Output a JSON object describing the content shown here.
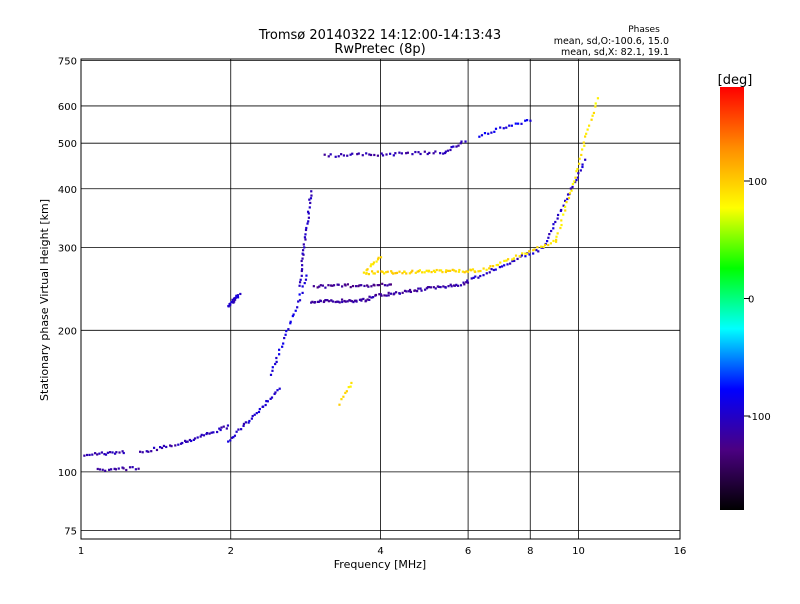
{
  "chart_data": {
    "type": "scatter",
    "title": "Tromsø 20140322 14:12:00-14:13:43",
    "subtitle": "RwPretec (8p)",
    "xlabel": "Frequency [MHz]",
    "ylabel": "Stationary phase Virtual Height [km]",
    "x_scale": "log",
    "y_scale": "log",
    "xlim": [
      1,
      16
    ],
    "ylim": [
      72,
      755
    ],
    "x_ticks": [
      1,
      2,
      4,
      6,
      8,
      10,
      16
    ],
    "x_tick_labels": [
      "1",
      "2",
      "4",
      "6",
      "8",
      "10",
      "16"
    ],
    "y_ticks": [
      75,
      100,
      200,
      300,
      400,
      500,
      600,
      750
    ],
    "y_tick_labels": [
      "75",
      "100",
      "200",
      "300",
      "400",
      "500",
      "600",
      "750"
    ],
    "grid": true,
    "phase_box": {
      "heading": "Phases",
      "line_o": "mean, sd,O:-100.6, 15.0",
      "line_x": "mean, sd,X:  82.1, 19.1"
    },
    "colorbar": {
      "label": "[deg]",
      "range": [
        -180,
        180
      ],
      "ticks": [
        100,
        0,
        -100
      ],
      "tick_labels": [
        "100",
        "0",
        "-100"
      ],
      "colors": [
        "#ff0000",
        "#ff8c00",
        "#ffff00",
        "#00ff00",
        "#00ffff",
        "#0000ff",
        "#4b0082",
        "#000000"
      ]
    },
    "series": [
      {
        "traces": [
          {
            "f1": 1.02,
            "f2": 1.22,
            "h1": 109,
            "h2": 110,
            "phase": -110,
            "n": 18
          },
          {
            "f1": 1.08,
            "f2": 1.3,
            "h1": 101,
            "h2": 102,
            "phase": -115,
            "n": 16
          },
          {
            "f1": 1.32,
            "f2": 1.62,
            "h1": 110,
            "h2": 116,
            "phase": -108,
            "n": 18
          },
          {
            "f1": 1.62,
            "f2": 1.98,
            "h1": 116,
            "h2": 125,
            "phase": -105,
            "n": 22
          },
          {
            "f1": 1.98,
            "f2": 2.5,
            "h1": 116,
            "h2": 150,
            "phase": -100,
            "n": 30
          },
          {
            "f1": 2.4,
            "f2": 2.85,
            "h1": 160,
            "h2": 260,
            "phase": -90,
            "n": 28
          },
          {
            "f1": 2.75,
            "f2": 2.9,
            "h1": 250,
            "h2": 395,
            "phase": -105,
            "n": 30
          },
          {
            "f1": 2.9,
            "f2": 3.8,
            "h1": 230,
            "h2": 232,
            "phase": -115,
            "n": 40
          },
          {
            "f1": 3.8,
            "f2": 6.0,
            "h1": 236,
            "h2": 252,
            "phase": -115,
            "n": 55
          },
          {
            "f1": 2.95,
            "f2": 4.2,
            "h1": 248,
            "h2": 250,
            "phase": -120,
            "n": 35
          },
          {
            "f1": 3.1,
            "f2": 5.4,
            "h1": 470,
            "h2": 478,
            "phase": -110,
            "n": 40
          },
          {
            "f1": 5.4,
            "f2": 5.9,
            "h1": 480,
            "h2": 505,
            "phase": -105,
            "n": 10
          },
          {
            "f1": 6.0,
            "f2": 8.5,
            "h1": 255,
            "h2": 300,
            "phase": -100,
            "n": 30
          },
          {
            "f1": 8.5,
            "f2": 10.3,
            "h1": 300,
            "h2": 460,
            "phase": -100,
            "n": 28
          },
          {
            "f1": 6.3,
            "f2": 8.0,
            "h1": 520,
            "h2": 560,
            "phase": -85,
            "n": 18
          },
          {
            "f1": 1.97,
            "f2": 2.08,
            "h1": 225,
            "h2": 238,
            "phase": -100,
            "n": 20
          }
        ]
      },
      {
        "traces": [
          {
            "f1": 3.7,
            "f2": 6.2,
            "h1": 265,
            "h2": 268,
            "phase": 95,
            "n": 60
          },
          {
            "f1": 3.75,
            "f2": 4.0,
            "h1": 270,
            "h2": 285,
            "phase": 92,
            "n": 10
          },
          {
            "f1": 6.2,
            "f2": 9.0,
            "h1": 265,
            "h2": 310,
            "phase": 90,
            "n": 32
          },
          {
            "f1": 9.0,
            "f2": 10.9,
            "h1": 310,
            "h2": 620,
            "phase": 85,
            "n": 34
          },
          {
            "f1": 3.3,
            "f2": 3.5,
            "h1": 140,
            "h2": 155,
            "phase": 90,
            "n": 8
          }
        ]
      }
    ]
  }
}
